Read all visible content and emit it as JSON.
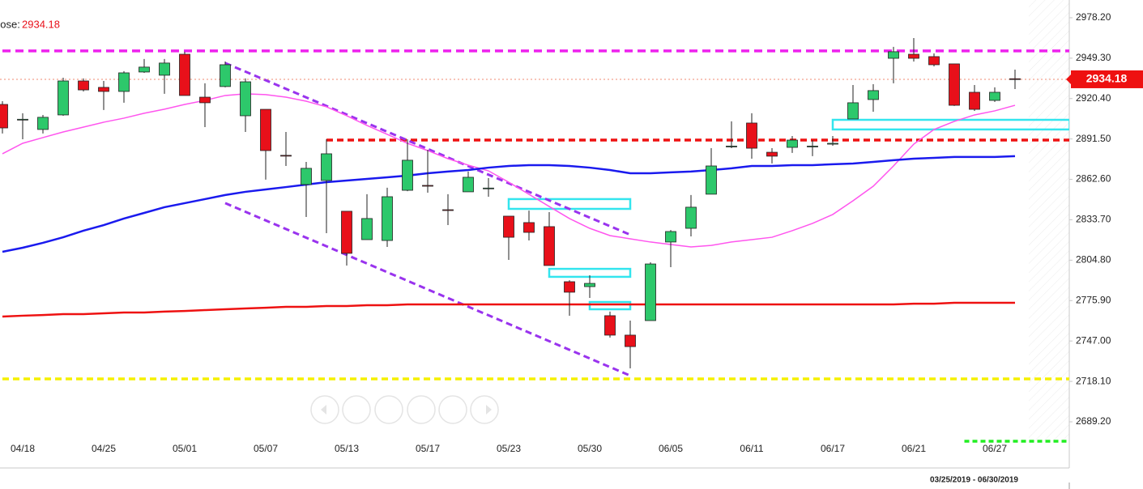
{
  "chart_data": {
    "type": "candlestick",
    "close_label": "Close:",
    "date_range": "03/25/2019 - 06/30/2019",
    "categories": [
      null,
      "04/18",
      null,
      null,
      null,
      "04/25",
      null,
      null,
      null,
      "05/01",
      null,
      null,
      null,
      "05/07",
      null,
      null,
      null,
      "05/13",
      null,
      null,
      null,
      "05/17",
      null,
      null,
      null,
      "05/23",
      null,
      null,
      null,
      "05/30",
      null,
      null,
      null,
      "06/05",
      null,
      null,
      null,
      "06/11",
      null,
      null,
      null,
      "06/17",
      null,
      null,
      null,
      "06/21",
      null,
      null,
      null,
      "06/27",
      null
    ],
    "open": [
      2916.2,
      2905.2,
      2898.3,
      2908.7,
      2933.0,
      2928.4,
      2925.5,
      2939.4,
      2937.1,
      2952.1,
      2921.4,
      2929.0,
      2908.1,
      2912.7,
      2879.8,
      2858.9,
      2861.8,
      2839.8,
      2819.5,
      2818.9,
      2854.8,
      2858.3,
      2840.9,
      2853.7,
      2856.0,
      2836.3,
      2831.7,
      2828.8,
      2789.4,
      2785.9,
      2765.1,
      2751.2,
      2761.6,
      2817.8,
      2827.6,
      2852.0,
      2886.0,
      2902.9,
      2882.0,
      2885.5,
      2886.1,
      2887.8,
      2905.8,
      2919.7,
      2949.2,
      2952.1,
      2950.4,
      2945.2,
      2924.9,
      2919.1,
      2934.6
    ],
    "high": [
      2918.5,
      2909.9,
      2908.7,
      2935.3,
      2934.8,
      2933.0,
      2940.0,
      2948.7,
      2948.7,
      2953.9,
      2931.3,
      2946.9,
      2934.8,
      2912.7,
      2896.5,
      2875.1,
      2891.3,
      2839.8,
      2852.0,
      2856.6,
      2891.3,
      2883.8,
      2852.0,
      2868.2,
      2863.5,
      2836.3,
      2840.3,
      2839.2,
      2790.5,
      2794.0,
      2768.0,
      2761.6,
      2803.3,
      2826.4,
      2851.4,
      2884.9,
      2904.1,
      2909.9,
      2884.9,
      2893.6,
      2890.7,
      2893.6,
      2930.1,
      2930.7,
      2957.4,
      2963.7,
      2952.7,
      2945.2,
      2930.1,
      2928.4,
      2941.1
    ],
    "low": [
      2895.4,
      2891.3,
      2895.4,
      2908.1,
      2925.5,
      2912.2,
      2917.4,
      2938.8,
      2923.8,
      2922.6,
      2900.0,
      2928.4,
      2896.5,
      2862.4,
      2872.2,
      2835.7,
      2824.1,
      2801.0,
      2819.5,
      2814.3,
      2854.2,
      2853.1,
      2829.9,
      2853.7,
      2850.2,
      2805.0,
      2818.9,
      2801.0,
      2765.1,
      2777.8,
      2749.4,
      2727.4,
      2761.6,
      2799.8,
      2821.8,
      2852.0,
      2884.9,
      2877.4,
      2874.0,
      2881.5,
      2879.2,
      2886.7,
      2905.8,
      2911.0,
      2931.3,
      2946.9,
      2943.4,
      2915.1,
      2911.6,
      2918.0,
      2927.2
    ],
    "close": [
      2899.4,
      2905.6,
      2907.0,
      2933.0,
      2926.6,
      2925.5,
      2938.8,
      2942.9,
      2945.8,
      2922.6,
      2917.4,
      2944.6,
      2932.4,
      2883.2,
      2879.4,
      2870.5,
      2880.9,
      2809.7,
      2834.6,
      2850.2,
      2876.3,
      2858.0,
      2840.5,
      2864.1,
      2856.4,
      2821.2,
      2824.7,
      2801.0,
      2781.9,
      2788.2,
      2751.2,
      2743.0,
      2802.1,
      2825.3,
      2842.7,
      2872.2,
      2886.4,
      2884.9,
      2879.2,
      2890.7,
      2886.4,
      2888.4,
      2917.4,
      2926.1,
      2953.9,
      2949.2,
      2944.6,
      2915.6,
      2912.7,
      2924.9,
      2934.18
    ],
    "up_color": "#2dc86b",
    "down_color": "#e8101a",
    "overlays": [
      {
        "color": "#ff55ee",
        "values": [
          2880.9,
          2888.4,
          2892.5,
          2896.5,
          2900.0,
          2903.5,
          2906.4,
          2909.9,
          2912.8,
          2916.2,
          2919.1,
          2922.6,
          2923.8,
          2923.2,
          2921.4,
          2918.5,
          2914.5,
          2908.1,
          2901.2,
          2894.8,
          2888.4,
          2883.2,
          2877.4,
          2872.8,
          2868.7,
          2860.6,
          2851.9,
          2843.2,
          2834.6,
          2827.6,
          2822.4,
          2820.1,
          2817.8,
          2816.0,
          2814.3,
          2815.4,
          2817.8,
          2819.5,
          2821.2,
          2825.9,
          2831.1,
          2837.5,
          2847.3,
          2857.7,
          2872.2,
          2887.8,
          2898.3,
          2904.1,
          2908.7,
          2911.6,
          2915.6
        ]
      },
      {
        "color": "#1a1aee",
        "values": [
          2810.8,
          2813.7,
          2817.2,
          2821.2,
          2825.9,
          2829.9,
          2834.6,
          2838.6,
          2842.7,
          2845.6,
          2848.5,
          2851.4,
          2853.7,
          2855.4,
          2857.1,
          2858.9,
          2860.6,
          2861.8,
          2862.9,
          2864.1,
          2865.3,
          2867.0,
          2868.2,
          2869.3,
          2871.0,
          2872.2,
          2872.8,
          2872.8,
          2872.2,
          2871.0,
          2869.3,
          2867.0,
          2867.0,
          2867.6,
          2868.2,
          2869.3,
          2870.5,
          2872.2,
          2872.2,
          2872.8,
          2872.8,
          2873.4,
          2873.9,
          2875.1,
          2876.3,
          2877.4,
          2878.0,
          2878.6,
          2878.6,
          2878.6,
          2879.2
        ]
      },
      {
        "color": "#ee1111",
        "values": [
          2764.5,
          2765.1,
          2765.6,
          2766.2,
          2766.2,
          2766.8,
          2767.4,
          2767.4,
          2768.0,
          2768.5,
          2769.1,
          2769.7,
          2770.3,
          2770.8,
          2771.4,
          2771.4,
          2772.0,
          2772.0,
          2772.6,
          2772.6,
          2773.2,
          2773.2,
          2773.2,
          2773.2,
          2773.2,
          2773.2,
          2773.2,
          2773.2,
          2773.2,
          2773.2,
          2773.2,
          2773.2,
          2773.2,
          2773.2,
          2773.2,
          2773.2,
          2773.2,
          2773.2,
          2773.2,
          2773.2,
          2773.2,
          2773.2,
          2773.2,
          2773.2,
          2773.2,
          2773.7,
          2773.7,
          2774.3,
          2774.3,
          2774.3,
          2774.3
        ]
      }
    ],
    "levels": [
      {
        "value": 2954.5,
        "start": 0,
        "color": "#ee22ee"
      },
      {
        "value": 2890.7,
        "start": 16,
        "color": "#ee1111"
      },
      {
        "value": 2719.9,
        "start": 0,
        "color": "#f5f000"
      },
      {
        "value": 2675.3,
        "start": 47.5,
        "color": "#22ee22"
      }
    ],
    "trendlines": [
      {
        "color": "#9933ee",
        "start": [
          11,
          2945.8
        ],
        "end": [
          31,
          2823.0
        ]
      },
      {
        "color": "#9933ee",
        "start": [
          11,
          2845.6
        ],
        "end": [
          31,
          2722.2
        ]
      }
    ],
    "zones": [
      {
        "color": "#33e5ee",
        "start": 25,
        "end": 31,
        "top": 2848.5,
        "bottom": 2841.5
      },
      {
        "color": "#33e5ee",
        "start": 27,
        "end": 31,
        "top": 2798.6,
        "bottom": 2792.9
      },
      {
        "color": "#33e5ee",
        "start": 29,
        "end": 31,
        "top": 2774.9,
        "bottom": 2769.7
      },
      {
        "color": "#33e5ee",
        "start": 41,
        "end": 52.7,
        "top": 2905.2,
        "bottom": 2898.3
      }
    ],
    "ylim": [
      2656.2,
      2990.9
    ],
    "yticks": [
      {
        "value": 2978.2,
        "label": "2978.20"
      },
      {
        "value": 2949.3,
        "label": "2949.30"
      },
      {
        "value": 2920.4,
        "label": "2920.40"
      },
      {
        "value": 2891.5,
        "label": "2891.50"
      },
      {
        "value": 2862.6,
        "label": "2862.60"
      },
      {
        "value": 2833.7,
        "label": "2833.70"
      },
      {
        "value": 2804.8,
        "label": "2804.80"
      },
      {
        "value": 2775.9,
        "label": "2775.90"
      },
      {
        "value": 2747,
        "label": "2747.00"
      },
      {
        "value": 2718.1,
        "label": "2718.10"
      },
      {
        "value": 2689.2,
        "label": "2689.20"
      }
    ],
    "grid": false
  }
}
